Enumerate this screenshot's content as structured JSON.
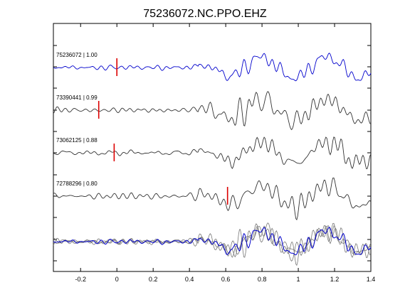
{
  "chart_data": {
    "type": "line",
    "title": "75236072.NC.PPO.EHZ",
    "xlabel": "",
    "ylabel": "",
    "xlim": [
      -0.35,
      1.4
    ],
    "x_ticks": [
      -0.2,
      0,
      0.2,
      0.4,
      0.6,
      0.8,
      1,
      1.2,
      1.4
    ],
    "x_tick_labels": [
      "-0.2",
      "0",
      "0.2",
      "0.4",
      "0.6",
      "0.8",
      "1",
      "1.2",
      "1.4"
    ],
    "grid": false,
    "legend": "none",
    "colors": {
      "reference": "#0000cc",
      "trace": "#333333",
      "stack": "#777777",
      "pick": "#dd0000"
    },
    "traces": [
      {
        "label": "75236072 | 1.00",
        "pick": 0.0,
        "color": "#0000cc"
      },
      {
        "label": "73390441 | 0.99",
        "pick": -0.1,
        "color": "#333333"
      },
      {
        "label": "73062125 | 0.88",
        "pick": -0.015,
        "color": "#333333"
      },
      {
        "label": "72788296 | 0.80",
        "pick": 0.61,
        "color": "#333333"
      }
    ],
    "overlay": {
      "description_visible": false
    }
  }
}
